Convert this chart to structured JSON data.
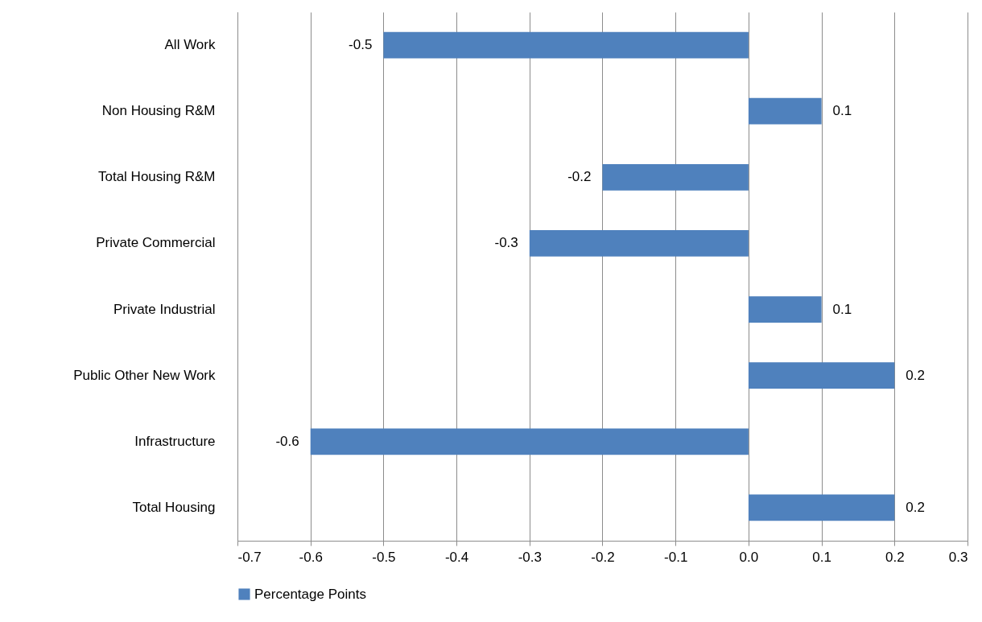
{
  "chart_data": {
    "type": "bar",
    "orientation": "horizontal",
    "categories": [
      "All Work",
      "Non Housing R&M",
      "Total Housing R&M",
      "Private Commercial",
      "Private Industrial",
      "Public Other New Work",
      "Infrastructure",
      "Total Housing"
    ],
    "series": [
      {
        "name": "Percentage Points",
        "color": "#4f81bd",
        "values": [
          -0.5,
          0.1,
          -0.2,
          -0.3,
          0.1,
          0.2,
          -0.6,
          0.2
        ]
      }
    ],
    "xlim": [
      -0.7,
      0.3
    ],
    "xticks": [
      -0.7,
      -0.6,
      -0.5,
      -0.4,
      -0.3,
      -0.2,
      -0.1,
      {
        "value": 0,
        "label": "0.0"
      },
      0.1,
      0.2,
      0.3
    ],
    "grid": "x",
    "legend": "bottom",
    "data_labels": true
  }
}
